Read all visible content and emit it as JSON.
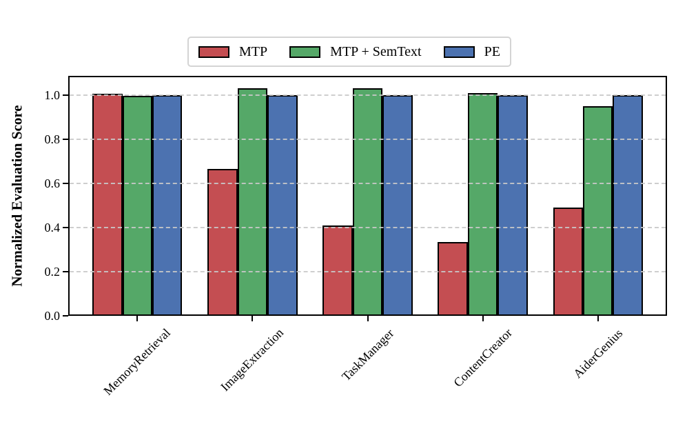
{
  "figure": {
    "background": "#ffffff"
  },
  "chart_data": {
    "type": "bar",
    "title": "",
    "categories": [
      "MemoryRetrieval",
      "ImageExtraction",
      "TaskManager",
      "ContentCreator",
      "AiderGenius"
    ],
    "series": [
      {
        "name": "MTP",
        "color": "#C44E52",
        "values": [
          1.005,
          0.665,
          0.41,
          0.335,
          0.49
        ]
      },
      {
        "name": "MTP + SemText",
        "color": "#55A868",
        "values": [
          0.995,
          1.03,
          1.03,
          1.01,
          0.95
        ]
      },
      {
        "name": "PE",
        "color": "#4C72B0",
        "values": [
          1.0,
          1.0,
          1.0,
          1.0,
          1.0
        ]
      }
    ],
    "xlabel": "",
    "ylabel": "Normalized Evaluation Score",
    "yticks": [
      "0.0",
      "0.2",
      "0.4",
      "0.6",
      "0.8",
      "1.0"
    ],
    "ylim": [
      0,
      1.087
    ],
    "grid": "horizontal-dashed",
    "grid_color": "#c9c9c9",
    "bar_edge_color": "#000000",
    "legend_position": "top-center"
  }
}
